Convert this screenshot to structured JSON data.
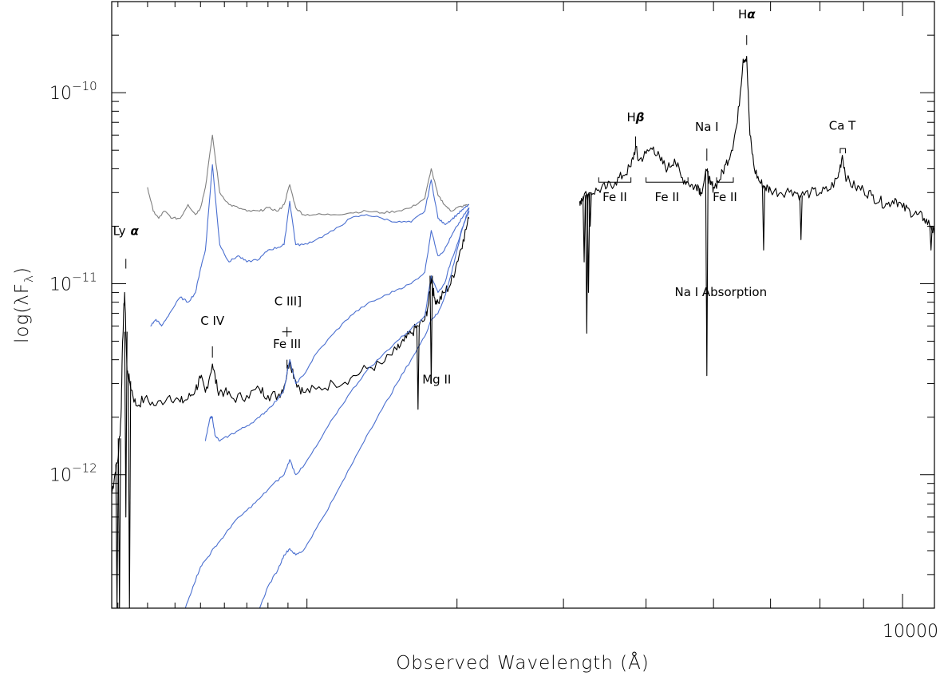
{
  "chart_data": {
    "type": "line",
    "title": "",
    "xlabel": "Observed Wavelength (Å)",
    "ylabel": "log(λF",
    "ylabel_sub": "λ",
    "ylabel_close": ")",
    "xscale": "log",
    "yscale": "log",
    "xlim": [
      1180,
      10900
    ],
    "ylim": [
      2e-13,
      3e-10
    ],
    "x_tick_labels": [
      {
        "value": 10000,
        "label": "10000"
      }
    ],
    "y_tick_labels": [
      {
        "value": 1e-10,
        "label": "10",
        "exp": "−10"
      },
      {
        "value": 1e-11,
        "label": "10",
        "exp": "−11"
      },
      {
        "value": 1e-12,
        "label": "10",
        "exp": "−12"
      }
    ],
    "series": [
      {
        "color": "#000000",
        "segments": [
          {
            "x": [
              1180,
              1190,
              1200,
              1210,
              1215,
              1222,
              1230,
              1240,
              1260,
              1290,
              1330,
              1380,
              1420,
              1450,
              1480,
              1500,
              1520,
              1549,
              1570,
              1600,
              1640,
              1700,
              1760,
              1800,
              1850,
              1880,
              1909,
              1940,
              1980,
              2050,
              2150,
              2250,
              2350,
              2450,
              2550,
              2600,
              2650,
              2700,
              2750,
              2780,
              2798,
              2820,
              2850,
              2900,
              2950,
              3000,
              3050,
              3100
            ],
            "y": [
              8e-13,
              1e-12,
              1.2e-12,
              2e-12,
              5e-12,
              9e-12,
              3.5e-12,
              3e-12,
              2.3e-12,
              2.5e-12,
              2.3e-12,
              2.6e-12,
              2.4e-12,
              2.5e-12,
              2.8e-12,
              3.2e-12,
              2.7e-12,
              3.8e-12,
              2.8e-12,
              2.7e-12,
              2.5e-12,
              2.6e-12,
              2.8e-12,
              2.6e-12,
              2.6e-12,
              2.9e-12,
              4e-12,
              3.1e-12,
              2.7e-12,
              2.8e-12,
              3e-12,
              3.2e-12,
              3.6e-12,
              3.8e-12,
              4.5e-12,
              5e-12,
              5.5e-12,
              6e-12,
              6.5e-12,
              8e-12,
              1.1e-11,
              8.5e-12,
              8e-12,
              9e-12,
              1e-11,
              1.3e-11,
              1.7e-11,
              2.2e-11
            ]
          },
          {
            "x": [
              4180,
              4200,
              4300,
              4400,
              4500,
              4600,
              4700,
              4800,
              4861,
              4900,
              5000,
              5100,
              5200,
              5300,
              5400,
              5500,
              5600,
              5700,
              5750,
              5800,
              5893,
              5950,
              6000,
              6100,
              6200,
              6300,
              6400,
              6500,
              6563,
              6620,
              6700,
              6800,
              6900,
              7000,
              7200,
              7400,
              7600,
              7800,
              8000,
              8200,
              8400,
              8498,
              8600,
              8800,
              9000,
              9200,
              9400,
              9600,
              9800,
              10000,
              10200,
              10400,
              10600,
              10800,
              10900
            ],
            "y": [
              2.7e-11,
              2.8e-11,
              3e-11,
              3.1e-11,
              3.2e-11,
              3.4e-11,
              3.7e-11,
              4.1e-11,
              5.2e-11,
              4.4e-11,
              4.8e-11,
              5.2e-11,
              4.4e-11,
              4e-11,
              4.5e-11,
              3.6e-11,
              3.4e-11,
              3.2e-11,
              3.3e-11,
              3e-11,
              3.9e-11,
              3.3e-11,
              3.2e-11,
              3.5e-11,
              4.2e-11,
              5e-11,
              7e-11,
              1.5e-10,
              1.55e-10,
              6e-11,
              4e-11,
              3.4e-11,
              3.2e-11,
              3.1e-11,
              3e-11,
              3.1e-11,
              2.9e-11,
              3e-11,
              3e-11,
              3.1e-11,
              3.6e-11,
              4.7e-11,
              3.5e-11,
              3.2e-11,
              3.1e-11,
              2.9e-11,
              2.7e-11,
              2.6e-11,
              2.8e-11,
              2.5e-11,
              2.4e-11,
              2.3e-11,
              2.2e-11,
              2e-11,
              1.8e-11
            ]
          }
        ]
      },
      {
        "color": "#7f7f7f",
        "segments": [
          {
            "x": [
              1300,
              1320,
              1340,
              1360,
              1390,
              1420,
              1450,
              1480,
              1500,
              1520,
              1549,
              1580,
              1620,
              1660,
              1700,
              1760,
              1800,
              1850,
              1880,
              1909,
              1940,
              1980,
              2050,
              2150,
              2250,
              2350,
              2450,
              2550,
              2650,
              2750,
              2798,
              2850,
              2900,
              2950,
              3000,
              3050,
              3100
            ],
            "y": [
              3.2e-11,
              2.4e-11,
              2.2e-11,
              2.4e-11,
              2.2e-11,
              2.2e-11,
              2.6e-11,
              2.3e-11,
              2.5e-11,
              3.2e-11,
              6e-11,
              3e-11,
              2.6e-11,
              2.5e-11,
              2.4e-11,
              2.4e-11,
              2.5e-11,
              2.4e-11,
              2.6e-11,
              3.3e-11,
              2.5e-11,
              2.3e-11,
              2.3e-11,
              2.3e-11,
              2.35e-11,
              2.4e-11,
              2.35e-11,
              2.4e-11,
              2.5e-11,
              2.8e-11,
              4e-11,
              2.9e-11,
              2.6e-11,
              2.4e-11,
              2.5e-11,
              2.55e-11,
              2.6e-11
            ]
          }
        ]
      },
      {
        "color": "#4a6fd0",
        "segments": [
          {
            "x": [
              1310,
              1330,
              1350,
              1380,
              1420,
              1450,
              1480,
              1500,
              1520,
              1549,
              1580,
              1620,
              1660,
              1700,
              1760,
              1800,
              1850,
              1880,
              1909,
              1940,
              1980,
              2050,
              2150,
              2250,
              2350,
              2450,
              2550,
              2650,
              2750,
              2798,
              2850,
              2900,
              2950,
              3000,
              3050,
              3100
            ],
            "y": [
              6e-12,
              6.5e-12,
              6e-12,
              7e-12,
              8.5e-12,
              8e-12,
              9e-12,
              1.2e-11,
              1.5e-11,
              4.2e-11,
              1.6e-11,
              1.3e-11,
              1.4e-11,
              1.3e-11,
              1.35e-11,
              1.5e-11,
              1.55e-11,
              1.6e-11,
              2.7e-11,
              1.6e-11,
              1.6e-11,
              1.7e-11,
              1.9e-11,
              2.2e-11,
              2.3e-11,
              2.2e-11,
              2.1e-11,
              2.1e-11,
              2.4e-11,
              3.5e-11,
              2.2e-11,
              2.05e-11,
              2.15e-11,
              2.3e-11,
              2.45e-11,
              2.6e-11
            ]
          },
          {
            "x": [
              1520,
              1540,
              1549,
              1560,
              1580,
              1620,
              1660,
              1700,
              1760,
              1800,
              1850,
              1880,
              1909,
              1940,
              1980,
              2050,
              2150,
              2250,
              2350,
              2450,
              2550,
              2650,
              2750,
              2798,
              2850,
              2900,
              2950,
              3000,
              3050,
              3100
            ],
            "y": [
              1.5e-12,
              2e-12,
              2e-12,
              1.6e-12,
              1.5e-12,
              1.6e-12,
              1.7e-12,
              1.8e-12,
              2e-12,
              2.2e-12,
              2.5e-12,
              2.8e-12,
              4e-12,
              3e-12,
              3.3e-12,
              4.3e-12,
              5.5e-12,
              6.8e-12,
              7.8e-12,
              8.5e-12,
              9.3e-12,
              1e-11,
              1.15e-11,
              1.9e-11,
              1.4e-11,
              1.5e-11,
              1.75e-11,
              2e-11,
              2.25e-11,
              2.5e-11
            ]
          },
          {
            "x": [
              1440,
              1470,
              1500,
              1530,
              1560,
              1600,
              1640,
              1700,
              1760,
              1820,
              1880,
              1909,
              1940,
              1980,
              2050,
              2150,
              2250,
              2350,
              2450,
              2550,
              2650,
              2750,
              2798,
              2850,
              2900,
              2950,
              3000,
              3050,
              3100
            ],
            "y": [
              2e-13,
              2.6e-13,
              3.3e-13,
              3.7e-13,
              4.2e-13,
              4.8e-13,
              5.6e-13,
              6.5e-13,
              7.5e-13,
              8.8e-13,
              1e-12,
              1.2e-12,
              1e-12,
              1.1e-12,
              1.4e-12,
              2e-12,
              2.7e-12,
              3.5e-12,
              4.2e-12,
              5e-12,
              5.8e-12,
              6.8e-12,
              1.1e-11,
              9e-12,
              1e-11,
              1.3e-11,
              1.6e-11,
              2e-11,
              2.4e-11
            ]
          },
          {
            "x": [
              1760,
              1800,
              1850,
              1880,
              1909,
              1940,
              1980,
              2050,
              2150,
              2250,
              2350,
              2450,
              2550,
              2650,
              2750,
              2798,
              2850,
              2900,
              2950,
              3000,
              3050,
              3100
            ],
            "y": [
              2e-13,
              2.6e-13,
              3.2e-13,
              3.8e-13,
              4.1e-13,
              3.8e-13,
              4e-13,
              5.2e-13,
              7.5e-13,
              1.1e-12,
              1.6e-12,
              2.2e-12,
              3e-12,
              4e-12,
              5.3e-12,
              6.5e-12,
              7e-12,
              8.5e-12,
              1.1e-11,
              1.5e-11,
              2e-11,
              2.5e-11
            ]
          }
        ]
      }
    ],
    "absorption_dips": [
      {
        "x": 1197,
        "y": 2e-13
      },
      {
        "x": 1205,
        "y": 2e-13
      },
      {
        "x": 1226,
        "y": 6e-13
      },
      {
        "x": 1238,
        "y": 2e-13
      },
      {
        "x": 2700,
        "y": 2.2e-12
      },
      {
        "x": 2798,
        "y": 3e-12
      },
      {
        "x": 4230,
        "y": 1.3e-11
      },
      {
        "x": 4260,
        "y": 5.5e-12
      },
      {
        "x": 4280,
        "y": 9e-12
      },
      {
        "x": 4300,
        "y": 2e-11
      },
      {
        "x": 5893,
        "y": 3.3e-12
      },
      {
        "x": 6870,
        "y": 1.5e-11
      },
      {
        "x": 7600,
        "y": 1.7e-11
      },
      {
        "x": 10800,
        "y": 1.5e-11
      }
    ],
    "annotations": [
      {
        "text": "Ly",
        "greek": "α",
        "x": 1226,
        "y": 1.8e-11,
        "tick_top": 1.35e-11,
        "tick_bottom": 1.2e-11
      },
      {
        "text": "C IV",
        "x": 1549,
        "y": 6.1e-12,
        "tick_top": 4.7e-12,
        "tick_bottom": 4.1e-12
      },
      {
        "text": "C III]",
        "x": 1900,
        "y": 7.7e-12,
        "tick_top": null,
        "tick_bottom": null,
        "plus": {
          "x": 1895,
          "y": 5.6e-12
        }
      },
      {
        "text": "Fe III",
        "x": 1895,
        "y": 4.6e-12,
        "tick_top": 4e-12,
        "tick_bottom": 3.6e-12
      },
      {
        "text": "Mg II",
        "x": 2840,
        "y": 3e-12,
        "tick_top": null,
        "tick_bottom": null
      },
      {
        "text": "H",
        "greek": "β",
        "x": 4861,
        "y": 7.1e-11,
        "tick_top": 5.9e-11,
        "tick_bottom": 5.2e-11
      },
      {
        "text": "Na I",
        "x": 5893,
        "y": 6.3e-11,
        "tick_top": 5.1e-11,
        "tick_bottom": 4.4e-11
      },
      {
        "text": "H",
        "greek": "α",
        "x": 6563,
        "y": 2.45e-10,
        "tick_top": 2e-10,
        "tick_bottom": 1.78e-10
      },
      {
        "text": "Ca T",
        "x": 8498,
        "y": 6.4e-11
      },
      {
        "text": "Na I Absorption",
        "x": 6120,
        "y": 8.6e-12
      }
    ],
    "brackets": [
      {
        "label": "Fe II",
        "x1": 4400,
        "x2": 4800,
        "y": 3.4e-11,
        "label_y": 2.7e-11
      },
      {
        "label": "Fe II",
        "x1": 5000,
        "x2": 5600,
        "y": 3.4e-11,
        "label_y": 2.7e-11
      },
      {
        "label": "Fe II",
        "x1": 6050,
        "x2": 6330,
        "y": 3.4e-11,
        "label_y": 2.7e-11
      },
      {
        "label": "",
        "x1": 8450,
        "x2": 8570,
        "y": 5.1e-11,
        "label_y": null,
        "up": true
      }
    ],
    "grid": false,
    "legend": "none"
  }
}
